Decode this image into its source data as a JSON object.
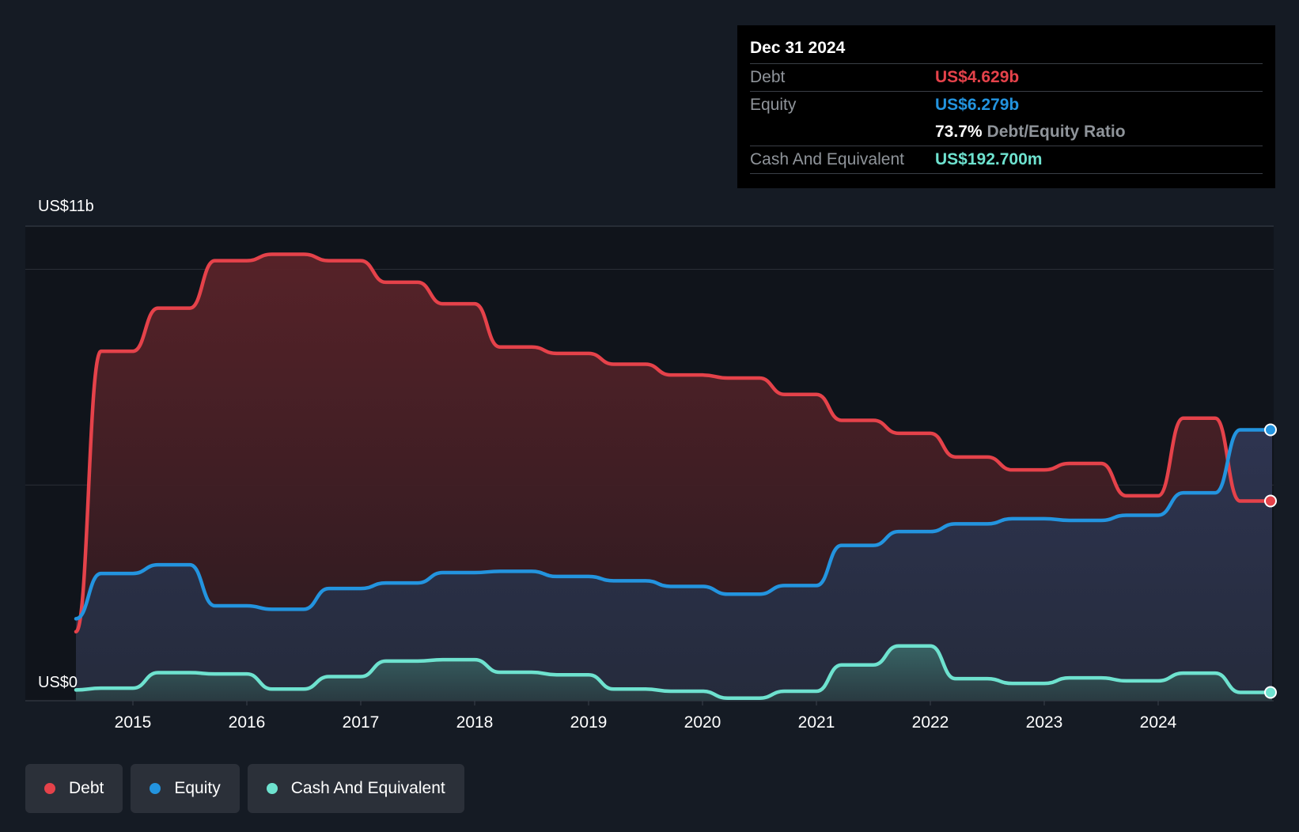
{
  "chart_data": {
    "type": "area",
    "y_axis": {
      "max_label": "US$11b",
      "min_label": "US$0",
      "ylim": [
        0,
        11
      ]
    },
    "x_ticks": [
      "2015",
      "2016",
      "2017",
      "2018",
      "2019",
      "2020",
      "2021",
      "2022",
      "2023",
      "2024"
    ],
    "xlim": [
      2014.5,
      2025.0
    ],
    "series": [
      {
        "name": "Debt",
        "color": "#e5424a",
        "points": [
          [
            2014.5,
            1.6
          ],
          [
            2014.72,
            8.1
          ],
          [
            2015.0,
            8.1
          ],
          [
            2015.22,
            9.1
          ],
          [
            2015.5,
            9.1
          ],
          [
            2015.72,
            10.2
          ],
          [
            2016.0,
            10.2
          ],
          [
            2016.22,
            10.35
          ],
          [
            2016.5,
            10.35
          ],
          [
            2016.72,
            10.2
          ],
          [
            2017.0,
            10.2
          ],
          [
            2017.22,
            9.7
          ],
          [
            2017.5,
            9.7
          ],
          [
            2017.72,
            9.2
          ],
          [
            2018.0,
            9.2
          ],
          [
            2018.22,
            8.2
          ],
          [
            2018.5,
            8.2
          ],
          [
            2018.72,
            8.05
          ],
          [
            2019.0,
            8.05
          ],
          [
            2019.22,
            7.8
          ],
          [
            2019.5,
            7.8
          ],
          [
            2019.72,
            7.55
          ],
          [
            2020.0,
            7.55
          ],
          [
            2020.22,
            7.48
          ],
          [
            2020.5,
            7.48
          ],
          [
            2020.72,
            7.1
          ],
          [
            2021.0,
            7.1
          ],
          [
            2021.22,
            6.5
          ],
          [
            2021.5,
            6.5
          ],
          [
            2021.72,
            6.2
          ],
          [
            2022.0,
            6.2
          ],
          [
            2022.22,
            5.65
          ],
          [
            2022.5,
            5.65
          ],
          [
            2022.72,
            5.35
          ],
          [
            2023.0,
            5.35
          ],
          [
            2023.22,
            5.5
          ],
          [
            2023.5,
            5.5
          ],
          [
            2023.72,
            4.75
          ],
          [
            2024.0,
            4.75
          ],
          [
            2024.22,
            6.55
          ],
          [
            2024.5,
            6.55
          ],
          [
            2024.72,
            4.629
          ],
          [
            2025.0,
            4.629
          ]
        ]
      },
      {
        "name": "Equity",
        "color": "#2394df",
        "points": [
          [
            2014.5,
            1.9
          ],
          [
            2014.72,
            2.95
          ],
          [
            2015.0,
            2.95
          ],
          [
            2015.22,
            3.15
          ],
          [
            2015.5,
            3.15
          ],
          [
            2015.72,
            2.2
          ],
          [
            2016.0,
            2.2
          ],
          [
            2016.22,
            2.12
          ],
          [
            2016.5,
            2.12
          ],
          [
            2016.72,
            2.6
          ],
          [
            2017.0,
            2.6
          ],
          [
            2017.22,
            2.73
          ],
          [
            2017.5,
            2.73
          ],
          [
            2017.72,
            2.97
          ],
          [
            2018.0,
            2.97
          ],
          [
            2018.22,
            3.0
          ],
          [
            2018.5,
            3.0
          ],
          [
            2018.72,
            2.88
          ],
          [
            2019.0,
            2.88
          ],
          [
            2019.22,
            2.78
          ],
          [
            2019.5,
            2.78
          ],
          [
            2019.72,
            2.65
          ],
          [
            2020.0,
            2.65
          ],
          [
            2020.22,
            2.47
          ],
          [
            2020.5,
            2.47
          ],
          [
            2020.72,
            2.67
          ],
          [
            2021.0,
            2.67
          ],
          [
            2021.22,
            3.6
          ],
          [
            2021.5,
            3.6
          ],
          [
            2021.72,
            3.92
          ],
          [
            2022.0,
            3.92
          ],
          [
            2022.22,
            4.1
          ],
          [
            2022.5,
            4.1
          ],
          [
            2022.72,
            4.22
          ],
          [
            2023.0,
            4.22
          ],
          [
            2023.22,
            4.18
          ],
          [
            2023.5,
            4.18
          ],
          [
            2023.72,
            4.3
          ],
          [
            2024.0,
            4.3
          ],
          [
            2024.22,
            4.82
          ],
          [
            2024.5,
            4.82
          ],
          [
            2024.72,
            6.279
          ],
          [
            2025.0,
            6.279
          ]
        ]
      },
      {
        "name": "Cash And Equivalent",
        "color": "#6ee2cf",
        "points": [
          [
            2014.5,
            0.25
          ],
          [
            2014.72,
            0.29
          ],
          [
            2015.0,
            0.29
          ],
          [
            2015.22,
            0.65
          ],
          [
            2015.5,
            0.65
          ],
          [
            2015.72,
            0.62
          ],
          [
            2016.0,
            0.62
          ],
          [
            2016.22,
            0.27
          ],
          [
            2016.5,
            0.27
          ],
          [
            2016.72,
            0.56
          ],
          [
            2017.0,
            0.56
          ],
          [
            2017.22,
            0.92
          ],
          [
            2017.5,
            0.92
          ],
          [
            2017.72,
            0.95
          ],
          [
            2018.0,
            0.95
          ],
          [
            2018.22,
            0.66
          ],
          [
            2018.5,
            0.66
          ],
          [
            2018.72,
            0.6
          ],
          [
            2019.0,
            0.6
          ],
          [
            2019.22,
            0.27
          ],
          [
            2019.5,
            0.27
          ],
          [
            2019.72,
            0.22
          ],
          [
            2020.0,
            0.22
          ],
          [
            2020.22,
            0.06
          ],
          [
            2020.5,
            0.06
          ],
          [
            2020.72,
            0.22
          ],
          [
            2021.0,
            0.22
          ],
          [
            2021.22,
            0.83
          ],
          [
            2021.5,
            0.83
          ],
          [
            2021.72,
            1.27
          ],
          [
            2022.0,
            1.27
          ],
          [
            2022.22,
            0.51
          ],
          [
            2022.5,
            0.51
          ],
          [
            2022.72,
            0.4
          ],
          [
            2023.0,
            0.4
          ],
          [
            2023.22,
            0.53
          ],
          [
            2023.5,
            0.53
          ],
          [
            2023.72,
            0.46
          ],
          [
            2024.0,
            0.46
          ],
          [
            2024.22,
            0.64
          ],
          [
            2024.5,
            0.64
          ],
          [
            2024.72,
            0.1927
          ],
          [
            2025.0,
            0.1927
          ]
        ]
      }
    ]
  },
  "tooltip": {
    "date": "Dec 31 2024",
    "debt_label": "Debt",
    "debt_value": "US$4.629b",
    "equity_label": "Equity",
    "equity_value": "US$6.279b",
    "ratio_value": "73.7%",
    "ratio_label": "Debt/Equity Ratio",
    "cash_label": "Cash And Equivalent",
    "cash_value": "US$192.700m"
  },
  "legend": [
    {
      "label": "Debt",
      "color": "#e5424a"
    },
    {
      "label": "Equity",
      "color": "#2394df"
    },
    {
      "label": "Cash And Equivalent",
      "color": "#6ee2cf"
    }
  ]
}
